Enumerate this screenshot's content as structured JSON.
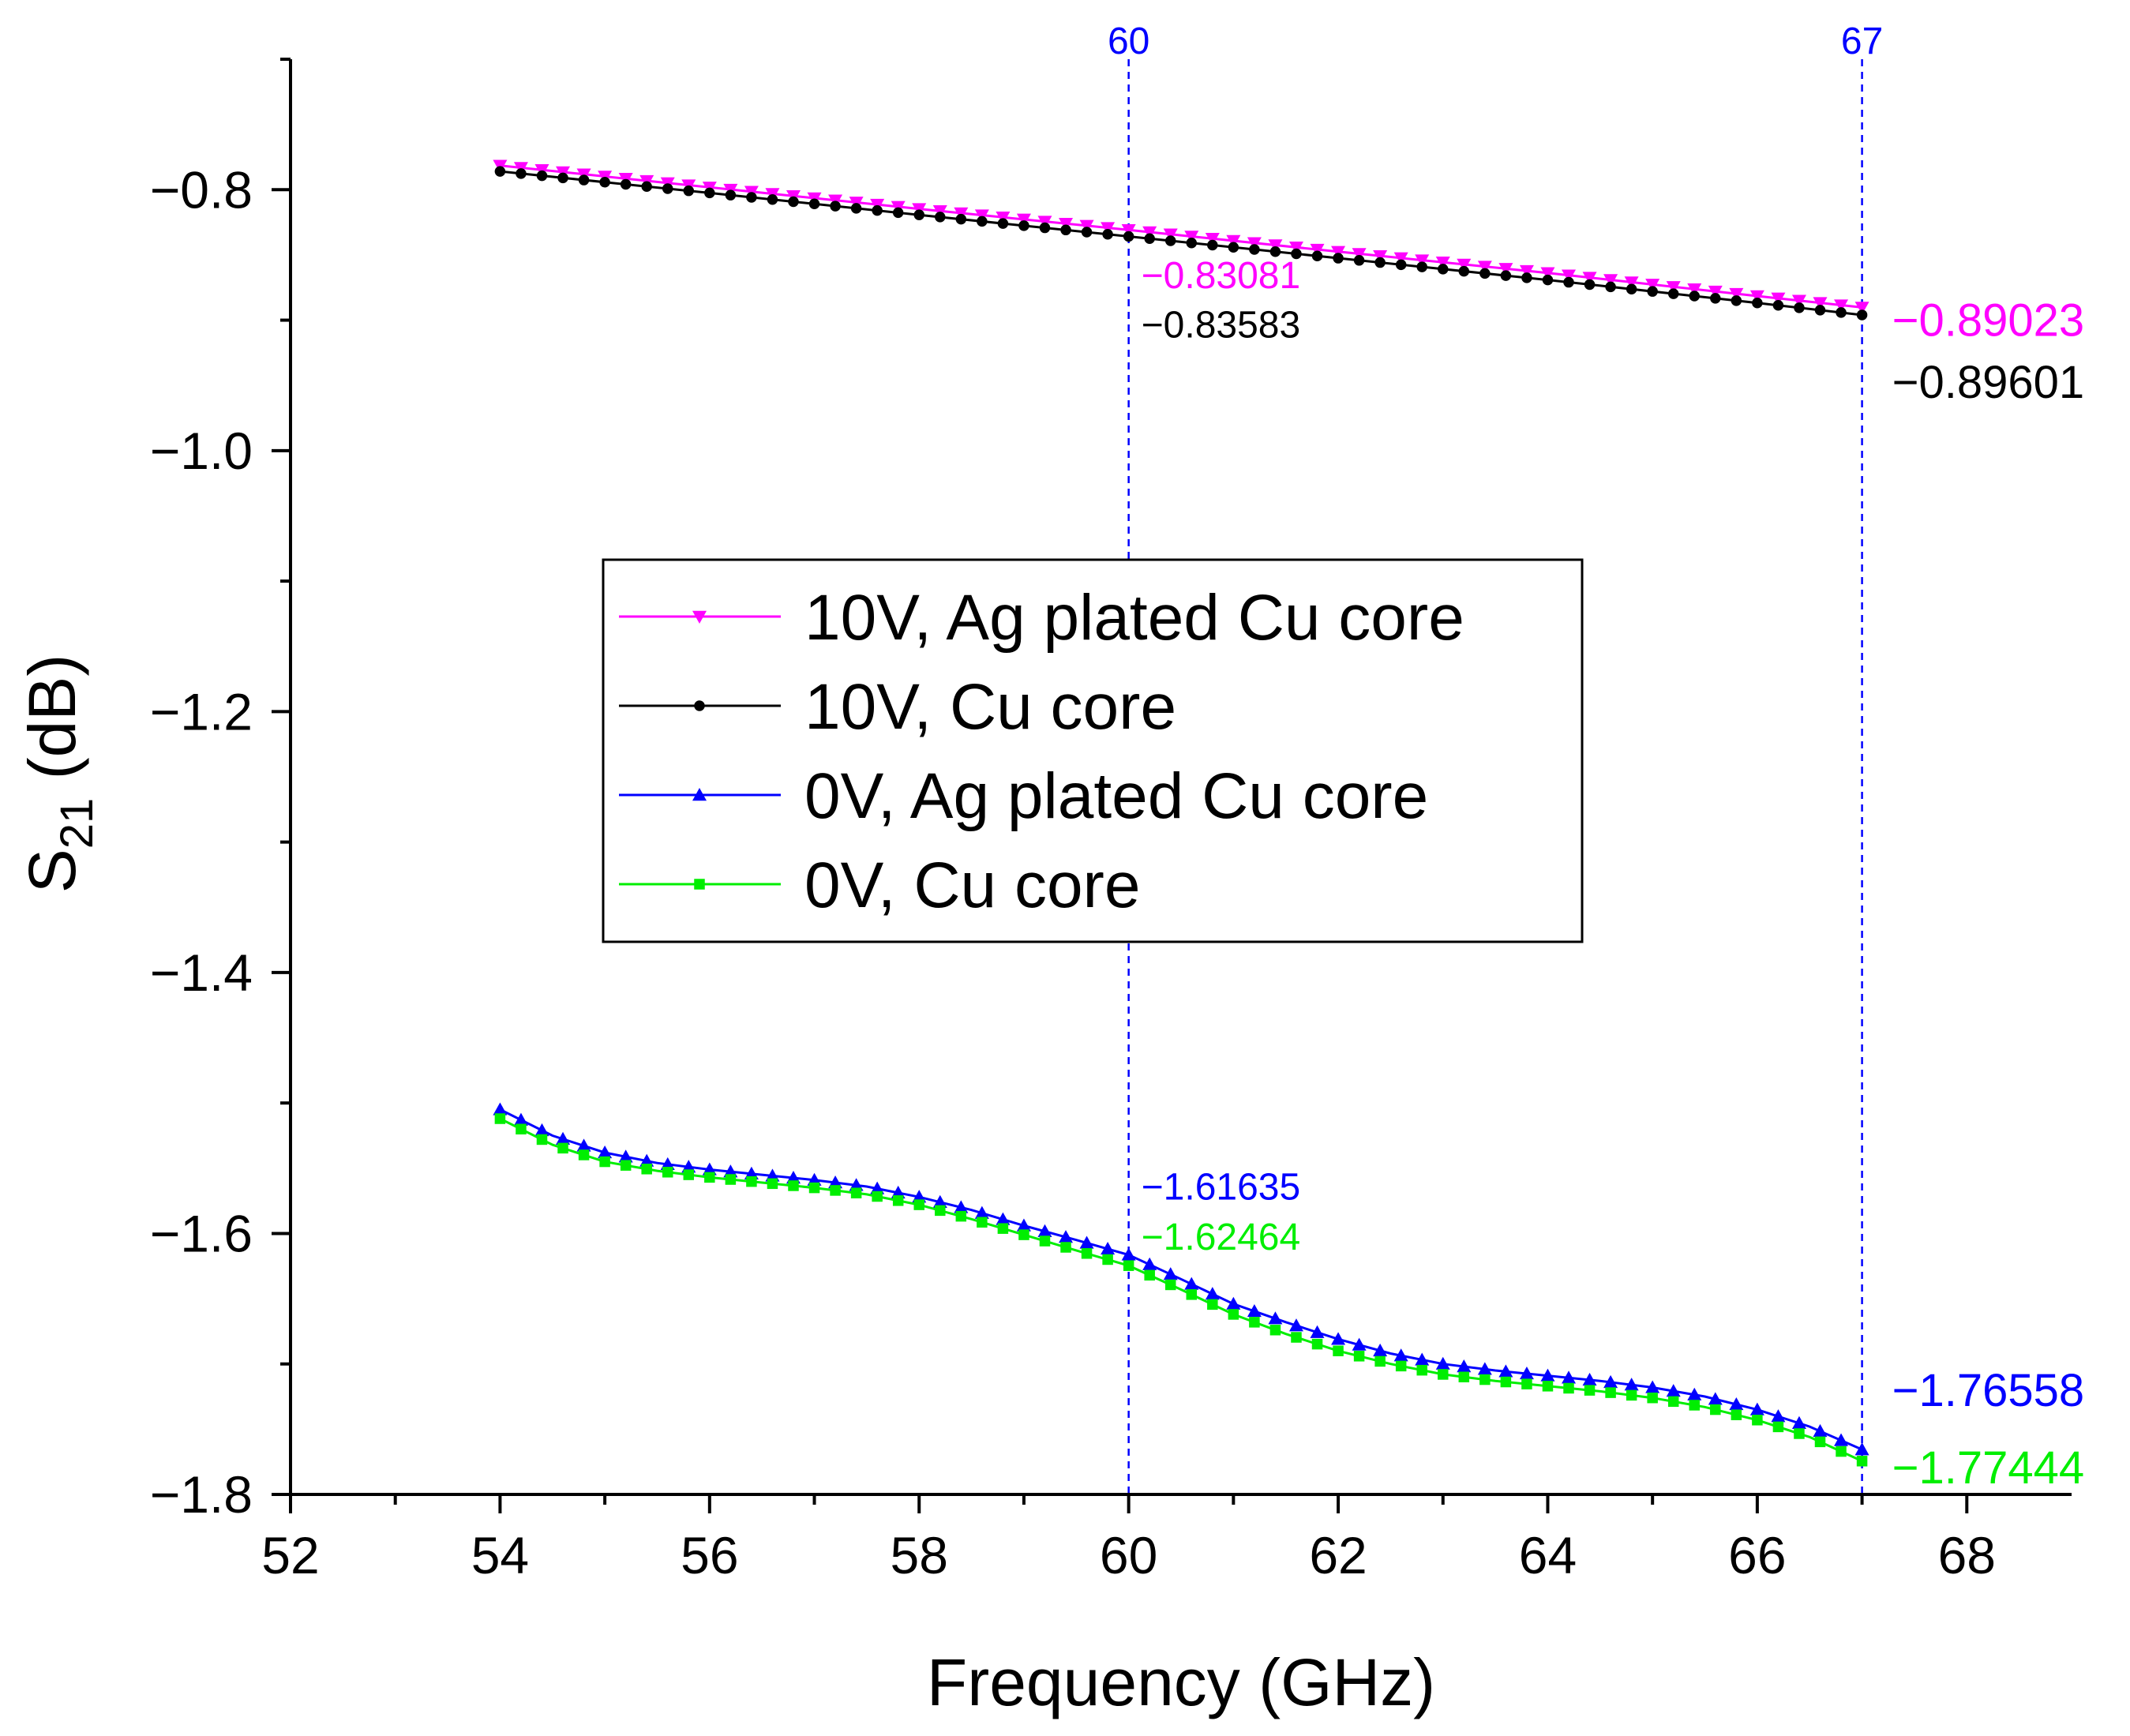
{
  "chart_data": {
    "type": "line",
    "xlabel": "Frequency (GHz)",
    "ylabel_main": "S",
    "ylabel_sub": "21",
    "ylabel_unit": " (dB)",
    "xlim": [
      52,
      69
    ],
    "ylim": [
      -1.8,
      -0.7
    ],
    "xticks": [
      52,
      54,
      56,
      58,
      60,
      62,
      64,
      66,
      68
    ],
    "xtick_labels": [
      "52",
      "54",
      "56",
      "58",
      "60",
      "62",
      "64",
      "66",
      "68"
    ],
    "yticks": [
      -0.8,
      -1.0,
      -1.2,
      -1.4,
      -1.6,
      -1.8
    ],
    "ytick_labels": [
      "−0.8",
      "−1.0",
      "−1.2",
      "−1.4",
      "−1.6",
      "−1.8"
    ],
    "x_minor_step": 1,
    "y_minor_step": 0.1,
    "legend_position": "center-left",
    "series": [
      {
        "name": "10V, Ag plated Cu core",
        "color": "#ff00ff",
        "marker": "triangle-down",
        "x": [
          54,
          56,
          58,
          60,
          62,
          64,
          66,
          67
        ],
        "values": [
          -0.7815,
          -0.7982,
          -0.8147,
          -0.83081,
          -0.8475,
          -0.8638,
          -0.8815,
          -0.89023
        ]
      },
      {
        "name": "10V, Cu core",
        "color": "#000000",
        "marker": "circle",
        "x": [
          54,
          56,
          58,
          60,
          62,
          64,
          66,
          67
        ],
        "values": [
          -0.786,
          -0.8025,
          -0.8193,
          -0.83583,
          -0.8525,
          -0.8692,
          -0.8868,
          -0.89601
        ]
      },
      {
        "name": "0V, Ag plated Cu core",
        "color": "#0000ff",
        "marker": "triangle-up",
        "x": [
          54,
          54.5,
          55,
          55.5,
          56,
          56.5,
          57,
          57.5,
          58,
          58.5,
          59,
          59.5,
          60,
          60.5,
          61,
          61.5,
          62,
          62.5,
          63,
          63.5,
          64,
          64.5,
          65,
          65.5,
          66,
          66.5,
          67
        ],
        "values": [
          -1.505,
          -1.525,
          -1.538,
          -1.546,
          -1.551,
          -1.555,
          -1.559,
          -1.564,
          -1.572,
          -1.582,
          -1.594,
          -1.605,
          -1.61635,
          -1.635,
          -1.654,
          -1.668,
          -1.681,
          -1.692,
          -1.7,
          -1.705,
          -1.709,
          -1.713,
          -1.718,
          -1.725,
          -1.735,
          -1.748,
          -1.76558
        ]
      },
      {
        "name": "0V, Cu core",
        "color": "#00ee00",
        "marker": "square",
        "x": [
          54,
          54.5,
          55,
          55.5,
          56,
          56.5,
          57,
          57.5,
          58,
          58.5,
          59,
          59.5,
          60,
          60.5,
          61,
          61.5,
          62,
          62.5,
          63,
          63.5,
          64,
          64.5,
          65,
          65.5,
          66,
          66.5,
          67
        ],
        "values": [
          -1.512,
          -1.532,
          -1.545,
          -1.552,
          -1.557,
          -1.561,
          -1.565,
          -1.57,
          -1.578,
          -1.589,
          -1.601,
          -1.613,
          -1.62464,
          -1.643,
          -1.662,
          -1.677,
          -1.69,
          -1.7,
          -1.708,
          -1.713,
          -1.717,
          -1.721,
          -1.726,
          -1.733,
          -1.743,
          -1.756,
          -1.77444
        ]
      }
    ],
    "vlines": [
      {
        "x": 60,
        "label": "60",
        "color": "#0000ff"
      },
      {
        "x": 67,
        "label": "67",
        "color": "#0000ff"
      }
    ],
    "annotations": [
      {
        "text": "−0.83081",
        "color": "#ff00ff",
        "x": 60,
        "y": -0.83081,
        "size": "small",
        "slot": "right-above"
      },
      {
        "text": "−0.83583",
        "color": "#000000",
        "x": 60,
        "y": -0.83583,
        "size": "small",
        "slot": "right-below"
      },
      {
        "text": "−0.89023",
        "color": "#ff00ff",
        "x": 67,
        "y": -0.89023,
        "size": "big",
        "slot": "right-above"
      },
      {
        "text": "−0.89601",
        "color": "#000000",
        "x": 67,
        "y": -0.89601,
        "size": "big",
        "slot": "right-below"
      },
      {
        "text": "−1.61635",
        "color": "#0000ff",
        "x": 60,
        "y": -1.61635,
        "size": "small",
        "slot": "right-above"
      },
      {
        "text": "−1.62464",
        "color": "#00ee00",
        "x": 60,
        "y": -1.62464,
        "size": "small",
        "slot": "right-below"
      },
      {
        "text": "−1.76558",
        "color": "#0000ff",
        "x": 67,
        "y": -1.76558,
        "size": "big",
        "slot": "right-above"
      },
      {
        "text": "−1.77444",
        "color": "#00ee00",
        "x": 67,
        "y": -1.77444,
        "size": "big",
        "slot": "right-below"
      }
    ]
  }
}
